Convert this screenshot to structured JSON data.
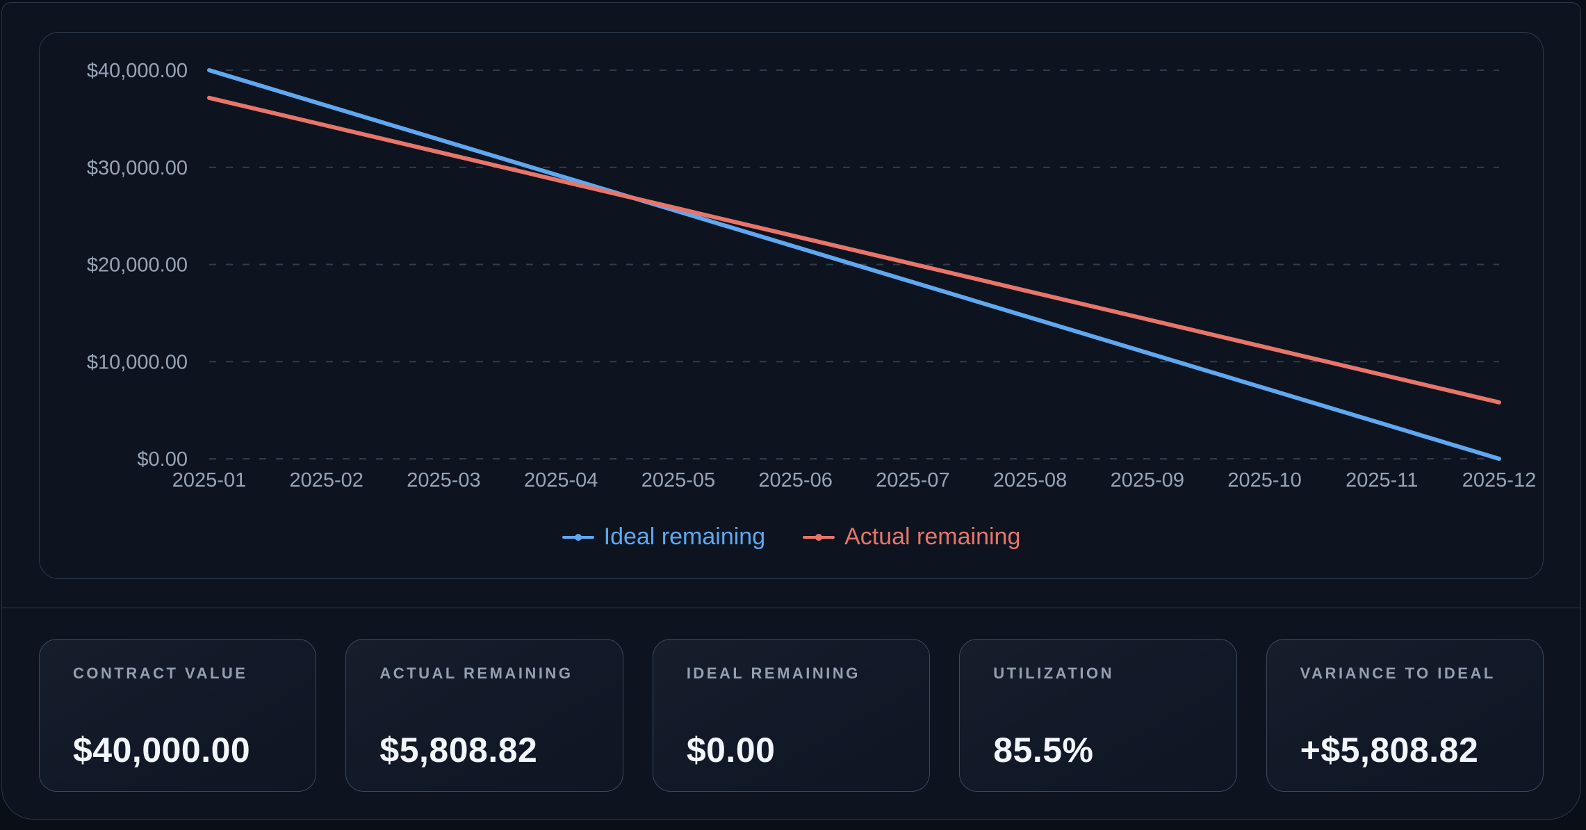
{
  "chart_data": {
    "type": "line",
    "title": "",
    "xlabel": "",
    "ylabel": "",
    "x": [
      "2025-01",
      "2025-02",
      "2025-03",
      "2025-04",
      "2025-05",
      "2025-06",
      "2025-07",
      "2025-08",
      "2025-09",
      "2025-10",
      "2025-11",
      "2025-12"
    ],
    "series": [
      {
        "name": "Ideal remaining",
        "color": "#5fa8f0",
        "values": [
          40000,
          36363.64,
          32727.27,
          29090.91,
          25454.55,
          21818.18,
          18181.82,
          14545.45,
          10909.09,
          7272.73,
          3636.36,
          0
        ]
      },
      {
        "name": "Actual remaining",
        "color": "#e9756a",
        "values": [
          37150.73,
          34301.47,
          31452.2,
          28602.94,
          25753.67,
          22904.41,
          20055.14,
          17205.88,
          14356.61,
          11507.35,
          8658.08,
          5808.82
        ]
      }
    ],
    "ylim": [
      0,
      40000
    ],
    "yticks": [
      {
        "value": 40000,
        "label": "$40,000.00"
      },
      {
        "value": 30000,
        "label": "$30,000.00"
      },
      {
        "value": 20000,
        "label": "$20,000.00"
      },
      {
        "value": 10000,
        "label": "$10,000.00"
      },
      {
        "value": 0,
        "label": "$0.00"
      }
    ],
    "grid": "horizontal dashed",
    "legend_position": "bottom"
  },
  "stats": {
    "cards": [
      {
        "label": "CONTRACT VALUE",
        "value": "$40,000.00"
      },
      {
        "label": "ACTUAL REMAINING",
        "value": "$5,808.82"
      },
      {
        "label": "IDEAL REMAINING",
        "value": "$0.00"
      },
      {
        "label": "UTILIZATION",
        "value": "85.5%"
      },
      {
        "label": "VARIANCE TO IDEAL",
        "value": "+$5,808.82"
      }
    ]
  },
  "colors": {
    "ideal_line": "#5fa8f0",
    "actual_line": "#e9756a",
    "panel_background": "#0d1420",
    "panel_border": "#2d3948",
    "card_border": "#3c495b",
    "gridline": "#333d4b",
    "tick_label": "#98a4b6",
    "stat_label": "#93a0b2",
    "stat_value": "#f2f5fa"
  }
}
